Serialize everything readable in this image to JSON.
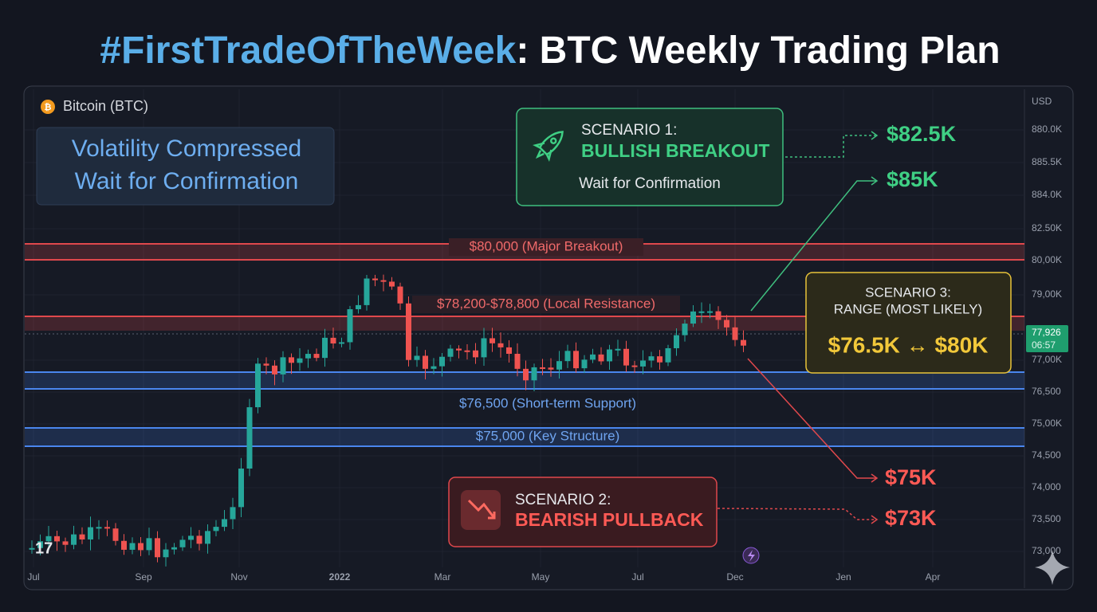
{
  "title": {
    "hashtag": "#FirstTradeOfTheWeek",
    "rest": ": BTC Weekly Trading Plan"
  },
  "symbol": "Bitcoin (BTC)",
  "note": [
    "Volatility Compressed",
    "Wait for Confirmation"
  ],
  "levels": [
    "$80,000 (Major Breakout)",
    "$78,200-$78,800 (Local Resistance)",
    "$76,500 (Short-term Support)",
    "$75,000 (Key Structure)"
  ],
  "scenarios": [
    {
      "label": "SCENARIO 1:",
      "name": "BULLISH BREAKOUT",
      "subtitle": "Wait for Confirmation"
    },
    {
      "label": "SCENARIO 2:",
      "name": "BEARISH PULLBACK"
    },
    {
      "label": "SCENARIO 3:",
      "name": "RANGE (MOST LIKELY)",
      "subtitle": "$76.5K ↔ $80K"
    }
  ],
  "targets": [
    "$82.5K",
    "$85K",
    "$75K",
    "$73K"
  ],
  "price_axis": {
    "currency": "USD",
    "labels": [
      "880.0K",
      "885.5K",
      "884.0K",
      "82.50K",
      "80,00K",
      "79,00K",
      "77,00K",
      "76,500",
      "75,00K",
      "74,500",
      "74,000",
      "73,500",
      "73,000"
    ],
    "last_price": "77,926",
    "countdown": "06:57"
  },
  "time_axis": [
    "Jul",
    "Sep",
    "Nov",
    "2022",
    "Mar",
    "May",
    "Jul",
    "Dec",
    "Jen",
    "Apr"
  ]
}
